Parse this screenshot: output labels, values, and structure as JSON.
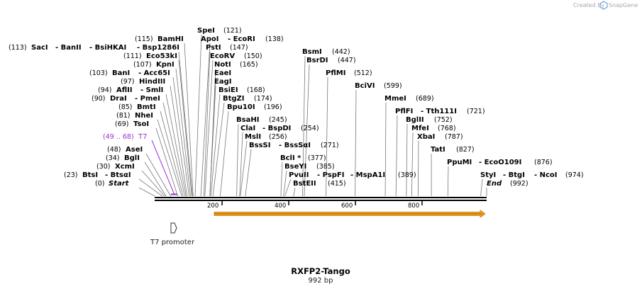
{
  "credit": {
    "created_by": "Created by",
    "brand": "SnapGene"
  },
  "construct": {
    "name": "RXFP2-Tango",
    "length": "992 bp",
    "total_bp": 992
  },
  "sites": [
    {
      "label": "SpeI",
      "num": "(121)",
      "pos": 121
    },
    {
      "label": "ApoI",
      "num": "",
      "pos": 138
    },
    {
      "label": "- EcoRI",
      "num": "(138)",
      "pos": 138
    },
    {
      "label": "PstI",
      "num": "(147)",
      "pos": 147
    },
    {
      "label": "EcoRV",
      "num": "(150)",
      "pos": 150
    },
    {
      "label": "NotI",
      "num": "(165)",
      "pos": 165
    },
    {
      "label": "EaeI",
      "num": "",
      "pos": 165
    },
    {
      "label": "EagI",
      "num": "",
      "pos": 165
    },
    {
      "label": "BsiEI",
      "num": "(168)",
      "pos": 168
    },
    {
      "label": "BtgZI",
      "num": "(174)",
      "pos": 174
    },
    {
      "label": "Bpu10I",
      "num": "(196)",
      "pos": 196
    },
    {
      "label": "BamHI",
      "num": "(115)",
      "pos": 115
    },
    {
      "label": "SacI",
      "num": "(113)",
      "pos": 113
    },
    {
      "label": "- BanII",
      "num": "",
      "pos": 113
    },
    {
      "label": "- BsiHKAI",
      "num": "",
      "pos": 113
    },
    {
      "label": "- Bsp1286I",
      "num": "",
      "pos": 113
    },
    {
      "label": "Eco53kI",
      "num": "(111)",
      "pos": 111
    },
    {
      "label": "KpnI",
      "num": "(107)",
      "pos": 107
    },
    {
      "label": "BanI",
      "num": "(103)",
      "pos": 103
    },
    {
      "label": "- Acc65I",
      "num": "",
      "pos": 103
    },
    {
      "label": "HindIII",
      "num": "(97)",
      "pos": 97
    },
    {
      "label": "AflII",
      "num": "(94)",
      "pos": 94
    },
    {
      "label": "- SmlI",
      "num": "",
      "pos": 94
    },
    {
      "label": "DraI",
      "num": "(90)",
      "pos": 90
    },
    {
      "label": "- PmeI",
      "num": "",
      "pos": 90
    },
    {
      "label": "BmtI",
      "num": "(85)",
      "pos": 85
    },
    {
      "label": "NheI",
      "num": "(81)",
      "pos": 81
    },
    {
      "label": "TsoI",
      "num": "(69)",
      "pos": 69
    },
    {
      "label": "AseI",
      "num": "(48)",
      "pos": 48
    },
    {
      "label": "BglI",
      "num": "(34)",
      "pos": 34
    },
    {
      "label": "XcmI",
      "num": "(30)",
      "pos": 30
    },
    {
      "label": "BtsI",
      "num": "(23)",
      "pos": 23
    },
    {
      "label": "- BtsαI",
      "num": "",
      "pos": 23
    },
    {
      "label": "Start",
      "num": "(0)",
      "pos": 0
    },
    {
      "label": "BsmI",
      "num": "(442)",
      "pos": 442
    },
    {
      "label": "BsrDI",
      "num": "(447)",
      "pos": 447
    },
    {
      "label": "PflMI",
      "num": "(512)",
      "pos": 512
    },
    {
      "label": "BciVI",
      "num": "(599)",
      "pos": 599
    },
    {
      "label": "MmeI",
      "num": "(689)",
      "pos": 689
    },
    {
      "label": "PflFI",
      "num": "(721)",
      "pos": 721
    },
    {
      "label": "- Tth111I",
      "num": "",
      "pos": 721
    },
    {
      "label": "BglII",
      "num": "(752)",
      "pos": 752
    },
    {
      "label": "MfeI",
      "num": "(768)",
      "pos": 768
    },
    {
      "label": "XbaI",
      "num": "(787)",
      "pos": 787
    },
    {
      "label": "TatI",
      "num": "(827)",
      "pos": 827
    },
    {
      "label": "PpuMI",
      "num": "(876)",
      "pos": 876
    },
    {
      "label": "- EcoO109I",
      "num": "",
      "pos": 876
    },
    {
      "label": "StyI",
      "num": "(974)",
      "pos": 974
    },
    {
      "label": "- BtgI",
      "num": "",
      "pos": 974
    },
    {
      "label": "- NcoI",
      "num": "",
      "pos": 974
    },
    {
      "label": "End",
      "num": "(992)",
      "pos": 992
    },
    {
      "label": "BsaHI",
      "num": "(245)",
      "pos": 245
    },
    {
      "label": "ClaI",
      "num": "(254)",
      "pos": 254
    },
    {
      "label": "- BspDI",
      "num": "",
      "pos": 254
    },
    {
      "label": "MslI",
      "num": "(256)",
      "pos": 256
    },
    {
      "label": "BssSI",
      "num": "(271)",
      "pos": 271
    },
    {
      "label": "- BssSαI",
      "num": "",
      "pos": 271
    },
    {
      "label": "BclI *",
      "num": "(377)",
      "pos": 377
    },
    {
      "label": "BseYI",
      "num": "(385)",
      "pos": 385
    },
    {
      "label": "PvuII",
      "num": "(389)",
      "pos": 389
    },
    {
      "label": "- PspFI",
      "num": "",
      "pos": 389
    },
    {
      "label": "- MspA1I",
      "num": "",
      "pos": 389
    },
    {
      "label": "BstEII",
      "num": "(415)",
      "pos": 415
    }
  ],
  "features": {
    "t7": {
      "label": "T7",
      "range": "(49 .. 68)",
      "start": 49,
      "end": 68,
      "color": "#9933cc"
    },
    "t7_promoter": {
      "label": "T7 promoter",
      "pos": 58
    },
    "orf": {
      "start": 175,
      "end": 992,
      "fill": "#f4a11d",
      "outline": "#c77700"
    }
  },
  "ruler": {
    "ticks": [
      {
        "label": "200",
        "value": 200
      },
      {
        "label": "400",
        "value": 400
      },
      {
        "label": "600",
        "value": 600
      },
      {
        "label": "800",
        "value": 800
      }
    ]
  },
  "colors": {
    "backbone": "#000000",
    "leader": "#777777",
    "brand": "#6aa3d9"
  }
}
